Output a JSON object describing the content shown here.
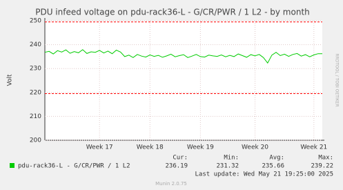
{
  "chart_data": {
    "type": "line",
    "title": "PDU infeed voltage on pdu-rack36-L - G/CR/PWR / 1 L2 - by month",
    "y_label": "Volt",
    "side_label": "RRDTOOL / TOBI OETIKER",
    "footer": "Munin 2.0.75",
    "last_update": "Last update: Wed May 21 19:25:00 2025",
    "xlim": [
      0,
      66
    ],
    "xticks": [
      {
        "value": 13,
        "label": "Week 17"
      },
      {
        "value": 25,
        "label": "Week 18"
      },
      {
        "value": 37,
        "label": "Week 19"
      },
      {
        "value": 50,
        "label": "Week 20"
      },
      {
        "value": 64,
        "label": "Week 21"
      }
    ],
    "ylim": [
      200,
      250
    ],
    "yticks": [
      200,
      210,
      220,
      230,
      240,
      250
    ],
    "grid": true,
    "thresholds": [
      249.5,
      219.5
    ],
    "threshold_color": "#ff0000",
    "series": [
      {
        "name": "pdu-rack36-L - G/CR/PWR / 1 L2",
        "color": "#00cc00",
        "values": [
          236.8,
          237.2,
          236.1,
          237.5,
          236.9,
          237.8,
          236.4,
          237.1,
          236.6,
          237.9,
          236.3,
          237.0,
          236.8,
          237.6,
          236.5,
          237.3,
          236.2,
          237.7,
          236.9,
          235.0,
          235.6,
          234.6,
          235.9,
          235.2,
          234.8,
          235.7,
          235.1,
          235.5,
          234.7,
          235.3,
          236.0,
          234.9,
          235.4,
          235.8,
          234.6,
          235.2,
          235.9,
          235.0,
          234.8,
          235.6,
          235.3,
          235.1,
          235.7,
          234.9,
          235.5,
          235.0,
          236.1,
          235.4,
          234.7,
          235.8,
          235.3,
          235.9,
          234.6,
          232.3,
          235.6,
          236.8,
          235.4,
          236.0,
          235.1,
          235.9,
          236.3,
          235.2,
          235.8,
          234.9,
          235.7,
          236.2,
          236.19
        ]
      }
    ],
    "stats": [
      {
        "label": "Cur:",
        "value": 236.19
      },
      {
        "label": "Min:",
        "value": 231.32
      },
      {
        "label": "Avg:",
        "value": 235.66
      },
      {
        "label": "Max:",
        "value": 239.22
      }
    ]
  }
}
